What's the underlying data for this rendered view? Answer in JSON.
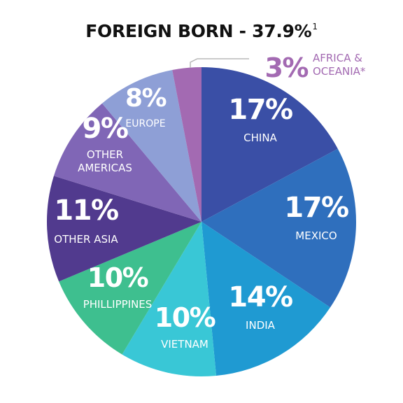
{
  "chart_data": {
    "type": "pie",
    "title": "FOREIGN BORN - 37.9%",
    "title_footnote": "1",
    "slices": [
      {
        "label": "CHINA",
        "value": 17,
        "value_text": "17%",
        "color": "#3a4fa6"
      },
      {
        "label": "MEXICO",
        "value": 17,
        "value_text": "17%",
        "color": "#2f6fbd"
      },
      {
        "label": "INDIA",
        "value": 14,
        "value_text": "14%",
        "color": "#1f9ad2"
      },
      {
        "label": "VIETNAM",
        "value": 10,
        "value_text": "10%",
        "color": "#39c7d6"
      },
      {
        "label": "PHILLIPPINES",
        "value": 10,
        "value_text": "10%",
        "color": "#3ebf8f"
      },
      {
        "label": "OTHER ASIA",
        "value": 11,
        "value_text": "11%",
        "color": "#513a8e"
      },
      {
        "label": "OTHER AMERICAS",
        "value": 9,
        "value_text": "9%",
        "color": "#8066b6"
      },
      {
        "label": "EUROPE",
        "value": 8,
        "value_text": "8%",
        "color": "#8e9fd6"
      },
      {
        "label": "AFRICA & OCEANIA*",
        "value": 3,
        "value_text": "3%",
        "color": "#a36ab2"
      }
    ]
  }
}
